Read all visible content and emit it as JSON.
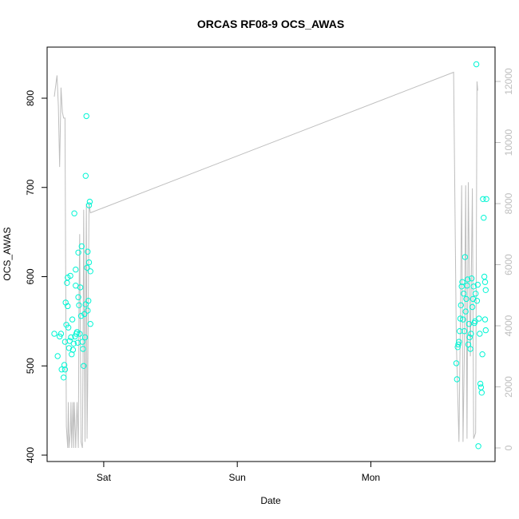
{
  "chart_data": {
    "type": "scatter",
    "title": "ORCAS RF08-9 OCS_AWAS",
    "xlabel": "Date",
    "ylabel": "OCS_AWAS",
    "x_unit": "days from 2016-02-19 00:00",
    "xlim": [
      0.576,
      3.93
    ],
    "ylim": [
      400,
      840
    ],
    "ylim_right": [
      0,
      12300
    ],
    "x_ticks": [
      {
        "value": 1,
        "label": "Sat"
      },
      {
        "value": 2,
        "label": "Sun"
      },
      {
        "value": 3,
        "label": "Mon"
      }
    ],
    "y_ticks": [
      400,
      500,
      600,
      700,
      800
    ],
    "y_ticks_right": [
      0,
      2000,
      4000,
      6000,
      8000,
      10000,
      12000
    ],
    "grid": false,
    "colors": {
      "points": "#00f5d4",
      "altitude_line": "#bebebe",
      "frame": "#000000"
    },
    "series": [
      {
        "name": "OCS_AWAS",
        "axis": "left",
        "marker": "open-circle",
        "points": [
          [
            0.63,
            536
          ],
          [
            0.655,
            511
          ],
          [
            0.67,
            533
          ],
          [
            0.68,
            536
          ],
          [
            0.685,
            496
          ],
          [
            0.7,
            487
          ],
          [
            0.705,
            501
          ],
          [
            0.71,
            496
          ],
          [
            0.71,
            527
          ],
          [
            0.715,
            571
          ],
          [
            0.72,
            546
          ],
          [
            0.725,
            593
          ],
          [
            0.73,
            599
          ],
          [
            0.73,
            567
          ],
          [
            0.735,
            543
          ],
          [
            0.74,
            520
          ],
          [
            0.745,
            528
          ],
          [
            0.75,
            601
          ],
          [
            0.755,
            532
          ],
          [
            0.76,
            513
          ],
          [
            0.765,
            552
          ],
          [
            0.77,
            518
          ],
          [
            0.775,
            525
          ],
          [
            0.78,
            671
          ],
          [
            0.785,
            533
          ],
          [
            0.79,
            590
          ],
          [
            0.79,
            608
          ],
          [
            0.795,
            536
          ],
          [
            0.8,
            538
          ],
          [
            0.805,
            526
          ],
          [
            0.81,
            577
          ],
          [
            0.81,
            627
          ],
          [
            0.815,
            568
          ],
          [
            0.82,
            536
          ],
          [
            0.825,
            588
          ],
          [
            0.83,
            556
          ],
          [
            0.835,
            634
          ],
          [
            0.84,
            527
          ],
          [
            0.845,
            519
          ],
          [
            0.85,
            500
          ],
          [
            0.855,
            558
          ],
          [
            0.86,
            532
          ],
          [
            0.865,
            569
          ],
          [
            0.865,
            713
          ],
          [
            0.87,
            780
          ],
          [
            0.875,
            610
          ],
          [
            0.88,
            628
          ],
          [
            0.88,
            562
          ],
          [
            0.885,
            573
          ],
          [
            0.89,
            616
          ],
          [
            0.89,
            680
          ],
          [
            0.895,
            684
          ],
          [
            0.9,
            547
          ],
          [
            0.9,
            606
          ],
          [
            3.64,
            503
          ],
          [
            3.645,
            485
          ],
          [
            3.65,
            521
          ],
          [
            3.655,
            524
          ],
          [
            3.66,
            527
          ],
          [
            3.665,
            539
          ],
          [
            3.67,
            553
          ],
          [
            3.675,
            568
          ],
          [
            3.68,
            589
          ],
          [
            3.685,
            594
          ],
          [
            3.69,
            552
          ],
          [
            3.695,
            581
          ],
          [
            3.7,
            539
          ],
          [
            3.705,
            622
          ],
          [
            3.71,
            561
          ],
          [
            3.715,
            575
          ],
          [
            3.72,
            590
          ],
          [
            3.725,
            597
          ],
          [
            3.73,
            524
          ],
          [
            3.735,
            547
          ],
          [
            3.74,
            532
          ],
          [
            3.745,
            519
          ],
          [
            3.75,
            536
          ],
          [
            3.755,
            598
          ],
          [
            3.76,
            566
          ],
          [
            3.765,
            575
          ],
          [
            3.77,
            589
          ],
          [
            3.775,
            548
          ],
          [
            3.78,
            550
          ],
          [
            3.785,
            581
          ],
          [
            3.79,
            838
          ],
          [
            3.795,
            573
          ],
          [
            3.8,
            591
          ],
          [
            3.805,
            410
          ],
          [
            3.81,
            553
          ],
          [
            3.815,
            536
          ],
          [
            3.82,
            480
          ],
          [
            3.825,
            476
          ],
          [
            3.83,
            470
          ],
          [
            3.835,
            513
          ],
          [
            3.84,
            687
          ],
          [
            3.845,
            666
          ],
          [
            3.85,
            600
          ],
          [
            3.855,
            594
          ],
          [
            3.86,
            585
          ],
          [
            3.865,
            687
          ],
          [
            3.855,
            552
          ],
          [
            3.86,
            540
          ]
        ]
      },
      {
        "name": "altitude",
        "axis": "right",
        "line": true,
        "points": [
          [
            0.63,
            11500
          ],
          [
            0.65,
            12200
          ],
          [
            0.66,
            11200
          ],
          [
            0.67,
            9200
          ],
          [
            0.68,
            11800
          ],
          [
            0.69,
            11000
          ],
          [
            0.7,
            10800
          ],
          [
            0.71,
            10800
          ],
          [
            0.72,
            700
          ],
          [
            0.73,
            0
          ],
          [
            0.735,
            1500
          ],
          [
            0.74,
            0
          ],
          [
            0.75,
            500
          ],
          [
            0.755,
            1500
          ],
          [
            0.76,
            0
          ],
          [
            0.77,
            1500
          ],
          [
            0.775,
            0
          ],
          [
            0.78,
            1500
          ],
          [
            0.79,
            0
          ],
          [
            0.8,
            1500
          ],
          [
            0.81,
            0
          ],
          [
            0.815,
            5000
          ],
          [
            0.82,
            7000
          ],
          [
            0.83,
            200
          ],
          [
            0.84,
            0
          ],
          [
            0.845,
            3000
          ],
          [
            0.85,
            7800
          ],
          [
            0.86,
            200
          ],
          [
            0.865,
            4500
          ],
          [
            0.87,
            8000
          ],
          [
            0.875,
            300
          ],
          [
            0.88,
            2000
          ],
          [
            0.89,
            8000
          ],
          [
            0.9,
            7700
          ],
          [
            3.62,
            12300
          ],
          [
            3.64,
            3500
          ],
          [
            3.66,
            200
          ],
          [
            3.67,
            4000
          ],
          [
            3.68,
            8600
          ],
          [
            3.69,
            200
          ],
          [
            3.7,
            3000
          ],
          [
            3.71,
            8600
          ],
          [
            3.72,
            300
          ],
          [
            3.73,
            8700
          ],
          [
            3.745,
            3000
          ],
          [
            3.76,
            8500
          ],
          [
            3.77,
            300
          ],
          [
            3.785,
            500
          ],
          [
            3.795,
            12000
          ],
          [
            3.8,
            11700
          ]
        ]
      }
    ]
  }
}
